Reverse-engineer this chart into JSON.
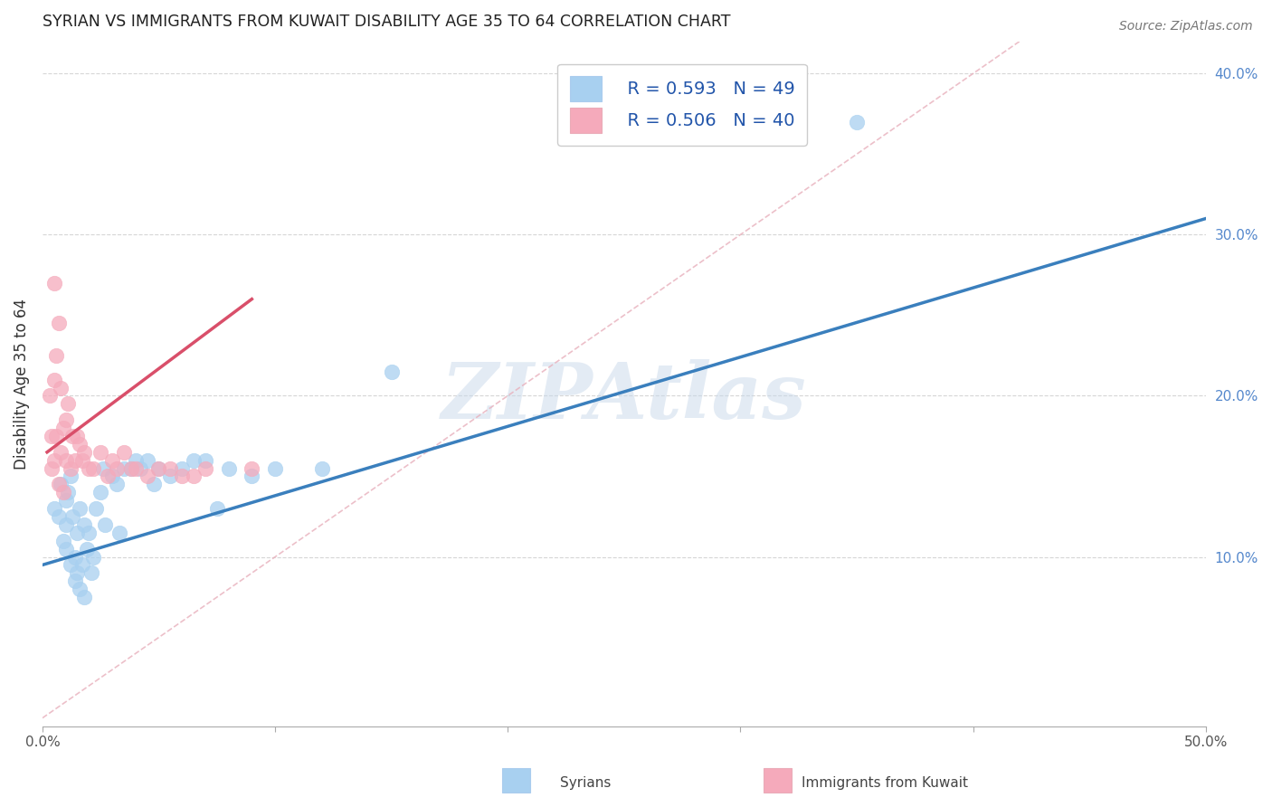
{
  "title": "SYRIAN VS IMMIGRANTS FROM KUWAIT DISABILITY AGE 35 TO 64 CORRELATION CHART",
  "source": "Source: ZipAtlas.com",
  "ylabel": "Disability Age 35 to 64",
  "xlim": [
    0.0,
    0.5
  ],
  "ylim": [
    -0.005,
    0.42
  ],
  "xticks": [
    0.0,
    0.1,
    0.2,
    0.3,
    0.4,
    0.5
  ],
  "xtick_labels": [
    "0.0%",
    "",
    "",
    "",
    "",
    "50.0%"
  ],
  "yticks": [
    0.1,
    0.2,
    0.3,
    0.4
  ],
  "ytick_labels": [
    "10.0%",
    "20.0%",
    "30.0%",
    "40.0%"
  ],
  "blue_color": "#A8D0F0",
  "pink_color": "#F5AABB",
  "blue_line_color": "#3A7FBD",
  "pink_line_color": "#D94F6A",
  "legend_R1": "R = 0.593",
  "legend_N1": "N = 49",
  "legend_R2": "R = 0.506",
  "legend_N2": "N = 40",
  "legend_label1": "Syrians",
  "legend_label2": "Immigrants from Kuwait",
  "watermark": "ZIPAtlas",
  "blue_scatter_x": [
    0.005,
    0.007,
    0.008,
    0.009,
    0.01,
    0.01,
    0.01,
    0.011,
    0.012,
    0.012,
    0.013,
    0.014,
    0.014,
    0.015,
    0.015,
    0.016,
    0.016,
    0.017,
    0.018,
    0.018,
    0.019,
    0.02,
    0.021,
    0.022,
    0.023,
    0.025,
    0.026,
    0.027,
    0.03,
    0.032,
    0.033,
    0.035,
    0.038,
    0.04,
    0.042,
    0.045,
    0.048,
    0.05,
    0.055,
    0.06,
    0.065,
    0.07,
    0.075,
    0.08,
    0.09,
    0.1,
    0.12,
    0.15,
    0.35
  ],
  "blue_scatter_y": [
    0.13,
    0.125,
    0.145,
    0.11,
    0.135,
    0.12,
    0.105,
    0.14,
    0.15,
    0.095,
    0.125,
    0.1,
    0.085,
    0.115,
    0.09,
    0.13,
    0.08,
    0.095,
    0.12,
    0.075,
    0.105,
    0.115,
    0.09,
    0.1,
    0.13,
    0.14,
    0.155,
    0.12,
    0.15,
    0.145,
    0.115,
    0.155,
    0.155,
    0.16,
    0.155,
    0.16,
    0.145,
    0.155,
    0.15,
    0.155,
    0.16,
    0.16,
    0.13,
    0.155,
    0.15,
    0.155,
    0.155,
    0.215,
    0.37
  ],
  "pink_scatter_x": [
    0.003,
    0.004,
    0.004,
    0.005,
    0.005,
    0.005,
    0.006,
    0.006,
    0.007,
    0.007,
    0.008,
    0.008,
    0.009,
    0.009,
    0.01,
    0.01,
    0.011,
    0.012,
    0.013,
    0.014,
    0.015,
    0.016,
    0.017,
    0.018,
    0.02,
    0.022,
    0.025,
    0.028,
    0.03,
    0.032,
    0.035,
    0.038,
    0.04,
    0.045,
    0.05,
    0.055,
    0.06,
    0.065,
    0.07,
    0.09
  ],
  "pink_scatter_y": [
    0.2,
    0.175,
    0.155,
    0.27,
    0.21,
    0.16,
    0.225,
    0.175,
    0.245,
    0.145,
    0.205,
    0.165,
    0.18,
    0.14,
    0.185,
    0.16,
    0.195,
    0.155,
    0.175,
    0.16,
    0.175,
    0.17,
    0.16,
    0.165,
    0.155,
    0.155,
    0.165,
    0.15,
    0.16,
    0.155,
    0.165,
    0.155,
    0.155,
    0.15,
    0.155,
    0.155,
    0.15,
    0.15,
    0.155,
    0.155
  ],
  "blue_line_x0": 0.0,
  "blue_line_y0": 0.095,
  "blue_line_x1": 0.5,
  "blue_line_y1": 0.31,
  "pink_line_x0": 0.002,
  "pink_line_y0": 0.165,
  "pink_line_x1": 0.09,
  "pink_line_y1": 0.26,
  "diag_line_x0": 0.0,
  "diag_line_y0": 0.0,
  "diag_line_x1": 0.42,
  "diag_line_y1": 0.42
}
